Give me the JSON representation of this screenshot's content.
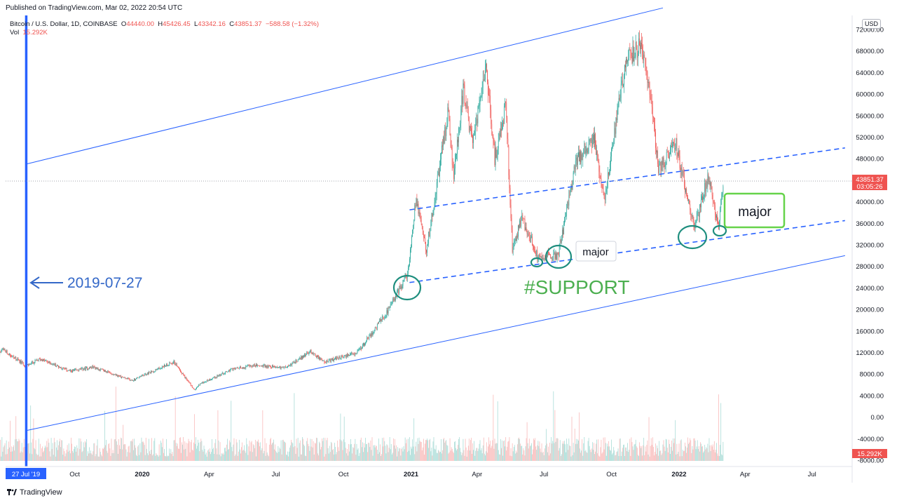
{
  "header": {
    "published": "Published on TradingView.com, Mar 02, 2022 20:54 UTC"
  },
  "legend": {
    "symbol": "Bitcoin / U.S. Dollar, 1D, COINBASE",
    "open_label": "O",
    "open": "44440.00",
    "high_label": "H",
    "high": "45426.45",
    "low_label": "L",
    "low": "43342.16",
    "close_label": "C",
    "close": "43851.37",
    "change": "−588.58 (−1.32%)",
    "vol_label": "Vol",
    "vol": "15.292K"
  },
  "currency": "USD",
  "price_badge": {
    "price": "43851.37",
    "countdown": "03:05:26"
  },
  "vol_badge": "15.292K",
  "date_badge": "27 Jul '19",
  "annotations": {
    "date_label": "2019-07-27",
    "support": "#SUPPORT",
    "major_1": "major",
    "major_2": "major"
  },
  "footer": {
    "brand": "TradingView"
  },
  "colors": {
    "up": "#26a69a",
    "down": "#ef5350",
    "channel": "#2962ff",
    "annotation_blue": "#3468c8",
    "support_green": "#4caf50",
    "circle_teal": "#1e8e7e"
  },
  "chart_data": {
    "type": "candlestick",
    "title": "Bitcoin / U.S. Dollar, 1D, COINBASE",
    "ylim": [
      -8000,
      72000
    ],
    "y_ticks": [
      "72000.00",
      "68000.00",
      "64000.00",
      "60000.00",
      "56000.00",
      "52000.00",
      "48000.00",
      "44000.00",
      "40000.00",
      "36000.00",
      "32000.00",
      "28000.00",
      "24000.00",
      "20000.00",
      "16000.00",
      "12000.00",
      "8000.00",
      "4000.00",
      "0.00",
      "-4000.00",
      "-8000.00"
    ],
    "x_ticks": [
      "Oct",
      "2020",
      "Apr",
      "Jul",
      "Oct",
      "2021",
      "Apr",
      "Jul",
      "Oct",
      "2022",
      "Apr",
      "Jul"
    ],
    "x_tick_dates": [
      "2019-10-01",
      "2020-01-01",
      "2020-04-01",
      "2020-07-01",
      "2020-10-01",
      "2021-01-01",
      "2021-04-01",
      "2021-07-01",
      "2021-10-01",
      "2022-01-01",
      "2022-04-01",
      "2022-07-01"
    ],
    "x_range": [
      "2019-06-01",
      "2022-08-15"
    ],
    "price_keypoints": [
      [
        "2019-06-01",
        9000
      ],
      [
        "2019-06-25",
        12500
      ],
      [
        "2019-07-27",
        9500
      ],
      [
        "2019-08-15",
        10800
      ],
      [
        "2019-09-25",
        8500
      ],
      [
        "2019-10-26",
        9300
      ],
      [
        "2019-12-18",
        6800
      ],
      [
        "2020-02-13",
        10300
      ],
      [
        "2020-03-12",
        5000
      ],
      [
        "2020-03-20",
        6200
      ],
      [
        "2020-05-01",
        8800
      ],
      [
        "2020-06-01",
        9600
      ],
      [
        "2020-07-15",
        9200
      ],
      [
        "2020-08-17",
        12200
      ],
      [
        "2020-09-05",
        10200
      ],
      [
        "2020-10-20",
        12000
      ],
      [
        "2020-11-30",
        19500
      ],
      [
        "2020-12-28",
        27000
      ],
      [
        "2021-01-08",
        41000
      ],
      [
        "2021-01-22",
        31000
      ],
      [
        "2021-02-21",
        57000
      ],
      [
        "2021-02-28",
        44500
      ],
      [
        "2021-03-13",
        61000
      ],
      [
        "2021-03-25",
        51000
      ],
      [
        "2021-04-14",
        64500
      ],
      [
        "2021-04-25",
        48000
      ],
      [
        "2021-05-10",
        58000
      ],
      [
        "2021-05-19",
        31000
      ],
      [
        "2021-06-01",
        37000
      ],
      [
        "2021-06-22",
        30000
      ],
      [
        "2021-07-20",
        30000
      ],
      [
        "2021-08-14",
        47500
      ],
      [
        "2021-09-07",
        52000
      ],
      [
        "2021-09-21",
        40500
      ],
      [
        "2021-10-20",
        66000
      ],
      [
        "2021-11-10",
        69000
      ],
      [
        "2021-11-25",
        58000
      ],
      [
        "2021-12-04",
        46000
      ],
      [
        "2021-12-27",
        51000
      ],
      [
        "2022-01-22",
        35000
      ],
      [
        "2022-02-10",
        45000
      ],
      [
        "2022-02-24",
        35000
      ],
      [
        "2022-03-02",
        43851
      ]
    ],
    "volume_max": 15292,
    "channel_lines": [
      {
        "style": "solid",
        "from": [
          "2019-07-27",
          47000
        ],
        "to": [
          "2021-12-10",
          76000
        ]
      },
      {
        "style": "solid",
        "from": [
          "2019-07-27",
          -2500
        ],
        "to": [
          "2022-08-15",
          30000
        ]
      },
      {
        "style": "dashed",
        "from": [
          "2020-12-30",
          38500
        ],
        "to": [
          "2022-08-15",
          50000
        ]
      },
      {
        "style": "dashed",
        "from": [
          "2020-12-30",
          25000
        ],
        "to": [
          "2022-08-15",
          36500
        ]
      }
    ],
    "marked_date": "2019-07-27",
    "last_price": 43851.37
  }
}
